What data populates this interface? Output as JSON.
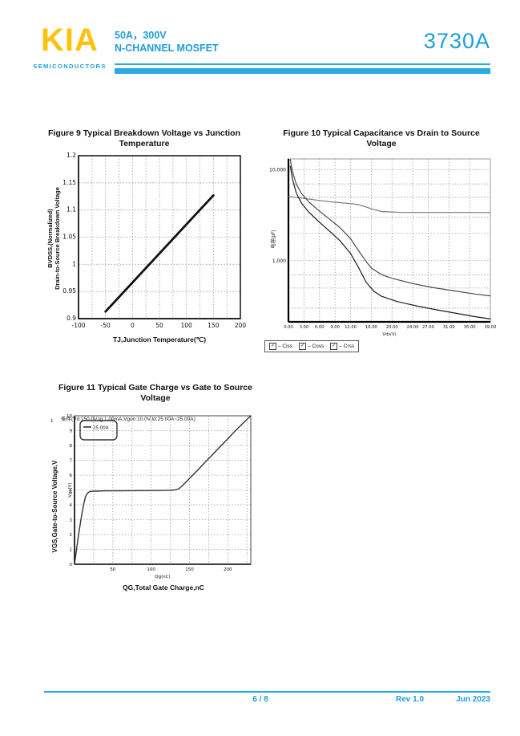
{
  "colors": {
    "accent": "#1e9fd8",
    "bar": "#29abe2",
    "logo": "#ffc20e",
    "grid": "#9a9a9a"
  },
  "header": {
    "logo_text": "KIA",
    "logo_subtext": "SEMICONDUCTORS",
    "rating": "50A，300V",
    "device_type": "N-CHANNEL MOSFET",
    "part_number": "3730A"
  },
  "footer": {
    "page_number": "6 / 8",
    "revision": "Rev 1.0",
    "date": "Jun 2023"
  },
  "chart_data": [
    {
      "id": "fig9",
      "type": "line",
      "title": "Figure 9 Typical Breakdown Voltage vs Junction\nTemperature",
      "xlabel": "TJ,Junction Temperature(℃)",
      "ylabel": "BVDSS,(Normalized)\nDrain-to-Source Breakdown Voltage",
      "xlim": [
        -100,
        200
      ],
      "ylim": [
        0.9,
        1.2
      ],
      "xticks": [
        -100,
        -50,
        0,
        50,
        100,
        150,
        200
      ],
      "xtick_labels": [
        "-100",
        "-50",
        "0",
        "50",
        "100",
        "150",
        "200"
      ],
      "xgrid_step": 25,
      "yticks": [
        0.9,
        0.95,
        1.0,
        1.05,
        1.1,
        1.15,
        1.2
      ],
      "ytick_labels": [
        "0.9",
        "0.95",
        "1",
        "1.05",
        "1.1",
        "1.15",
        "1.2"
      ],
      "grid": true,
      "series": [
        {
          "name": "Normalized breakdown voltage",
          "color": "#111111",
          "width": 2.8,
          "x": [
            -50,
            150
          ],
          "y": [
            0.913,
            1.127
          ]
        }
      ]
    },
    {
      "id": "fig10",
      "type": "line",
      "yscale": "log",
      "title": "Figure 10 Typical Capacitance vs Drain to Source\nVoltage",
      "inner_xlabel": "Vds(V)",
      "ylabel": "电容(pF)",
      "xlim": [
        0,
        39
      ],
      "ylim": [
        212,
        13200
      ],
      "xticks": [
        0,
        3,
        6,
        9,
        12,
        16,
        20,
        24,
        27,
        31,
        35,
        39
      ],
      "xtick_labels": [
        "0.00",
        "3.00",
        "6.00",
        "9.00",
        "12.00",
        "16.00",
        "20.00",
        "24.00",
        "27.00",
        "31.00",
        "35.00",
        "39.00"
      ],
      "yticks": [
        10000,
        1000
      ],
      "ytick_labels": [
        "10,000",
        "1,000"
      ],
      "ygrid": [
        10000,
        7000,
        5000,
        3000,
        2000,
        1000,
        700,
        500,
        300
      ],
      "legend_checkbox": "✓",
      "legend": [
        "– Ciss",
        "– Coss",
        "– Crss"
      ],
      "series": [
        {
          "name": "Ciss",
          "color": "#7a7a7a",
          "width": 1.2,
          "x": [
            0,
            1,
            3,
            6,
            9,
            12,
            13.5,
            15,
            16.5,
            18,
            22,
            28,
            34,
            39
          ],
          "y": [
            5100,
            5000,
            4850,
            4600,
            4400,
            4250,
            4150,
            3900,
            3650,
            3480,
            3400,
            3400,
            3400,
            3390
          ]
        },
        {
          "name": "Coss",
          "color": "#4a4a4a",
          "width": 1.2,
          "x": [
            0.35,
            0.8,
            1.5,
            2.5,
            4,
            6,
            8,
            10,
            12,
            13.5,
            15,
            16,
            18,
            20,
            24,
            28,
            32,
            36,
            39
          ],
          "y": [
            13000,
            9500,
            7000,
            5500,
            4400,
            3500,
            2850,
            2300,
            1750,
            1300,
            980,
            830,
            700,
            640,
            560,
            505,
            465,
            430,
            410
          ]
        },
        {
          "name": "Crss",
          "color": "#1a1a1a",
          "width": 1.2,
          "x": [
            0.35,
            0.8,
            1.5,
            2.5,
            4,
            6,
            8,
            10,
            12,
            13.5,
            15,
            16.5,
            18,
            21,
            25,
            29,
            33,
            36,
            39
          ],
          "y": [
            11000,
            7800,
            5600,
            4300,
            3400,
            2650,
            2100,
            1650,
            1200,
            850,
            580,
            460,
            405,
            355,
            315,
            285,
            260,
            242,
            228
          ]
        }
      ]
    },
    {
      "id": "fig11",
      "type": "line",
      "title": "Figure 11 Typical Gate Charge vs Gate to Source\nVoltage",
      "condition": "条件(Vd:150.0V,Ig:1.00mA,Vgon:10.0V,Id:25.00A~25.00A)",
      "axis_corner_label": "1",
      "legend_box": "25.00A",
      "inner_ylabel": "Vgs(V)",
      "inner_xlabel": "Qg(nC)",
      "xlabel": "QG,Total Gate Charge,nC",
      "ylabel": "VGS,Gate-to-Source Voltage,V",
      "xlim": [
        0,
        230
      ],
      "ylim": [
        0,
        10
      ],
      "xticks": [
        50,
        100,
        150,
        200
      ],
      "xtick_labels": [
        "50",
        "100",
        "150",
        "200"
      ],
      "xgrid_step": 25,
      "yticks": [
        0,
        1,
        2,
        3,
        4,
        5,
        6,
        7,
        8,
        9,
        10
      ],
      "ytick_labels": [
        "0",
        "1",
        "2",
        "3",
        "4",
        "5",
        "6",
        "7",
        "8",
        "9",
        "10"
      ],
      "series": [
        {
          "name": "25.00A",
          "color": "#333333",
          "width": 1.4,
          "x": [
            0,
            2,
            4,
            6,
            8,
            10,
            12,
            14,
            16,
            18,
            21,
            26,
            40,
            70,
            100,
            120,
            130,
            136,
            141,
            150,
            160,
            170,
            180,
            190,
            200,
            210,
            220,
            230
          ],
          "y": [
            0,
            0.75,
            1.5,
            2.2,
            2.9,
            3.5,
            4.05,
            4.5,
            4.72,
            4.84,
            4.9,
            4.92,
            4.94,
            4.95,
            4.96,
            4.98,
            5.0,
            5.08,
            5.3,
            5.78,
            6.3,
            6.85,
            7.38,
            7.92,
            8.45,
            9.0,
            9.5,
            10
          ]
        }
      ]
    }
  ]
}
